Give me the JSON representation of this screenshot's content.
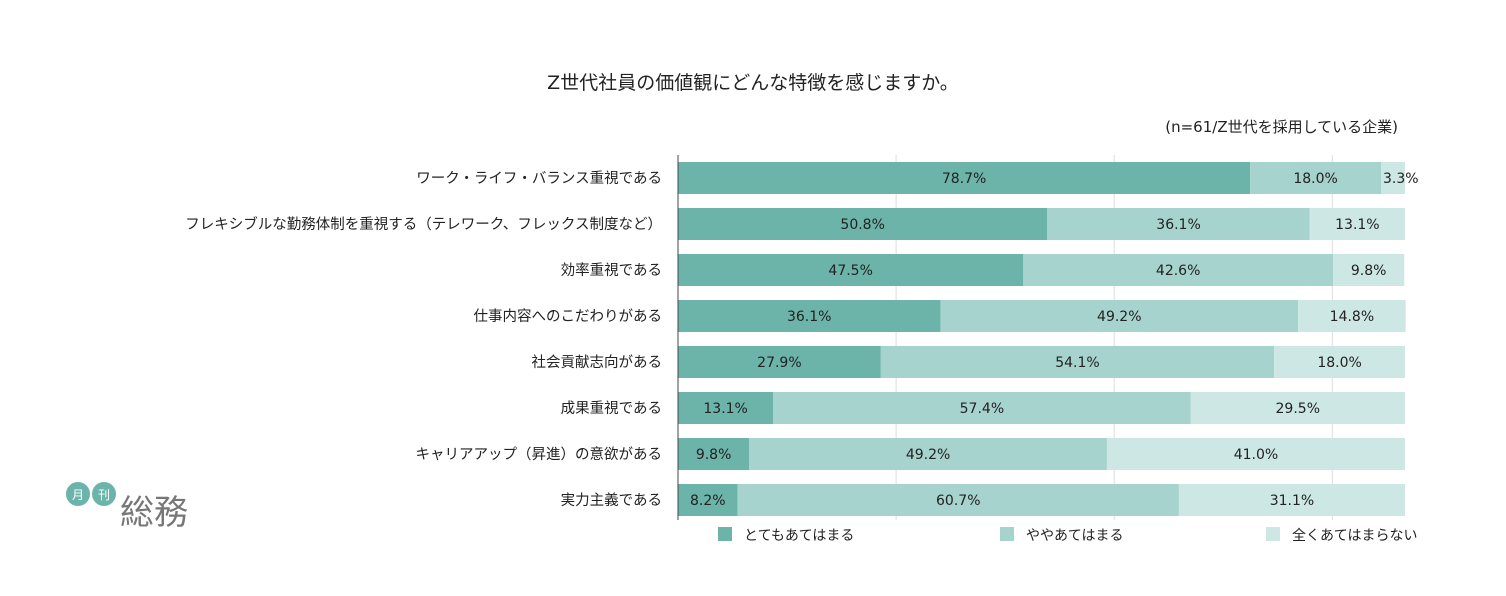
{
  "chart_data": {
    "type": "bar",
    "orientation": "horizontal-stacked-100",
    "title": "Z世代社員の価値観にどんな特徴を感じますか。",
    "subtitle": "(n=61/Z世代を採用している企業)",
    "categories": [
      "ワーク・ライフ・バランス重視である",
      "フレキシブルな勤務体制を重視する（テレワーク、フレックス制度など）",
      "効率重視である",
      "仕事内容へのこだわりがある",
      "社会貢献志向がある",
      "成果重視である",
      "キャリアアップ（昇進）の意欲がある",
      "実力主義である"
    ],
    "series": [
      {
        "name": "とてもあてはまる",
        "color": "#6cb3aa",
        "values": [
          78.7,
          50.8,
          47.5,
          36.1,
          27.9,
          13.1,
          9.8,
          8.2
        ]
      },
      {
        "name": "ややあてはまる",
        "color": "#a6d3cd",
        "values": [
          18.0,
          36.1,
          42.6,
          49.2,
          54.1,
          57.4,
          49.2,
          60.7
        ]
      },
      {
        "name": "全くあてはまらない",
        "color": "#cde8e4",
        "values": [
          3.3,
          13.1,
          9.8,
          14.8,
          18.0,
          29.5,
          41.0,
          31.1
        ]
      }
    ],
    "xlim": [
      0,
      100
    ],
    "grid": true,
    "legend": "bottom"
  },
  "logo": {
    "text": [
      "月",
      "刊",
      "総務"
    ]
  }
}
